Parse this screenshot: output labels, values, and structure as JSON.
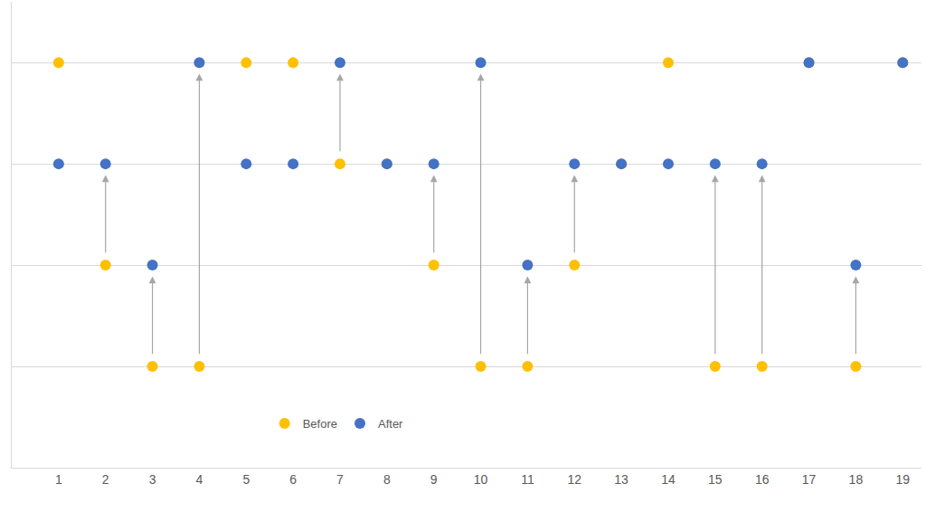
{
  "chart_data": {
    "type": "scatter",
    "x": [
      1,
      2,
      3,
      4,
      5,
      6,
      7,
      8,
      9,
      10,
      11,
      12,
      13,
      14,
      15,
      16,
      17,
      18,
      19
    ],
    "series": [
      {
        "name": "Before",
        "color": "#FFC000",
        "values": [
          4,
          2,
          1,
          1,
          4,
          4,
          3,
          3,
          2,
          1,
          1,
          2,
          3,
          4,
          1,
          1,
          4,
          1,
          4
        ]
      },
      {
        "name": "After",
        "color": "#4472C4",
        "values": [
          3,
          3,
          2,
          4,
          3,
          3,
          4,
          3,
          3,
          4,
          2,
          3,
          3,
          3,
          3,
          3,
          4,
          2,
          4
        ]
      }
    ],
    "xlim": [
      0,
      19.4
    ],
    "xticks": [
      1,
      2,
      3,
      4,
      5,
      6,
      7,
      8,
      9,
      10,
      11,
      12,
      13,
      14,
      15,
      16,
      17,
      18,
      19
    ],
    "ylim": [
      0,
      4.6
    ],
    "yticks": [
      1,
      2,
      3,
      4
    ],
    "grid": true,
    "tick_labels": "x",
    "legend": "bottom",
    "marker": "circle"
  }
}
